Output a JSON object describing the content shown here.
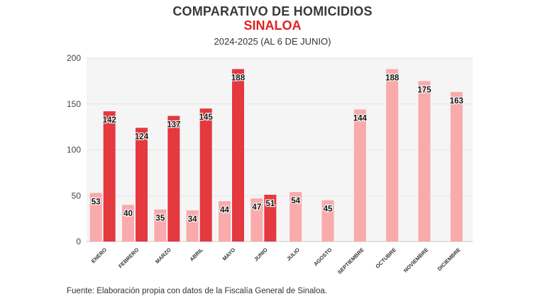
{
  "header": {
    "title": "COMPARATIVO DE HOMICIDIOS",
    "subtitle": "SINALOA",
    "period": "2024-2025 (AL 6 DE JUNIO)"
  },
  "footer": {
    "source": "Fuente: Elaboración propia con datos de la Fiscalía General de Sinaloa."
  },
  "colors": {
    "series_2024": "#f9aaaa",
    "series_2025": "#e3393f",
    "plot_bg": "#f5f5f5",
    "grid": "#e6e6e6"
  },
  "chart_data": {
    "type": "bar",
    "title": "COMPARATIVO DE HOMICIDIOS",
    "subtitle": "SINALOA",
    "categories": [
      "ENERO",
      "FEBRERO",
      "MARZO",
      "ABRIL",
      "MAYO",
      "JUNIO",
      "JULIO",
      "AGOSTO",
      "SEPTIEMBRE",
      "OCTUBRE",
      "NOVIEMBRE",
      "DICIEMBRE"
    ],
    "series": [
      {
        "values": [
          53,
          40,
          35,
          34,
          44,
          47,
          54,
          45,
          144,
          188,
          175,
          163
        ],
        "color": "#f9aaaa"
      },
      {
        "values": [
          142,
          124,
          137,
          145,
          188,
          51,
          null,
          null,
          null,
          null,
          null,
          null
        ],
        "color": "#e3393f"
      }
    ],
    "ylim": [
      0,
      200
    ],
    "yticks": [
      0,
      50,
      100,
      150,
      200
    ],
    "xlabel": "",
    "ylabel": "",
    "grid": true,
    "legend": "none"
  }
}
